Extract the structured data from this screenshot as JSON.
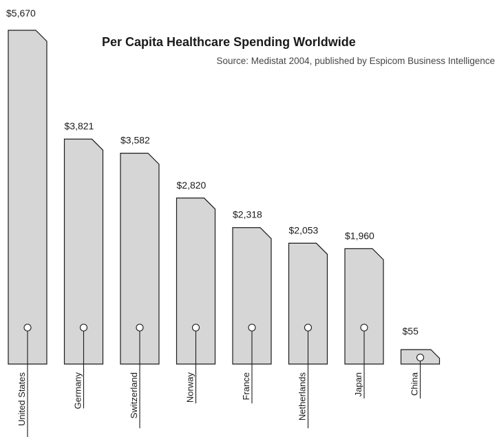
{
  "chart_data": {
    "type": "bar",
    "title": "Per Capita Healthcare Spending Worldwide",
    "subtitle": "Source:  Medistat 2004, published by Espicom Business Intelligence",
    "categories": [
      "United States",
      "Germany",
      "Switzerland",
      "Norway",
      "France",
      "Netherlands",
      "Japan",
      "China"
    ],
    "values": [
      5670,
      3821,
      3582,
      2820,
      2318,
      2053,
      1960,
      55
    ],
    "value_labels": [
      "$5,670",
      "$3,821",
      "$3,582",
      "$2,820",
      "$2,318",
      "$2,053",
      "$1,960",
      "$55"
    ],
    "xlabel": "",
    "ylabel": "",
    "ylim": [
      0,
      5670
    ],
    "grid": false,
    "legend": "none",
    "bar_color": "#d6d6d6",
    "outline_color": "#1a1a1a"
  }
}
